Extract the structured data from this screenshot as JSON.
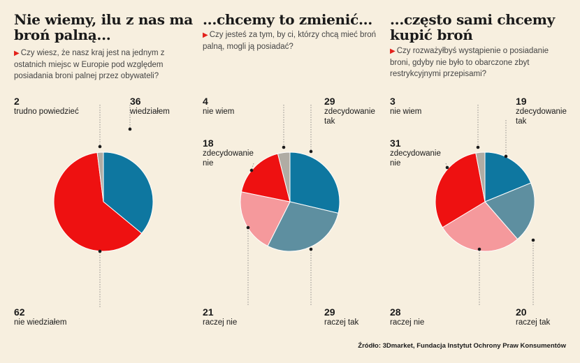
{
  "colors": {
    "red": "#ee1111",
    "blue": "#0e77a0",
    "grey": "#b0aca4",
    "steel": "#5e8fa0",
    "pink": "#f5999c"
  },
  "chart_data": [
    {
      "type": "pie",
      "title": "Nie wiemy, ilu z nas ma broń palną...",
      "question": "Czy wiesz, że nasz kraj jest na jednym z ostatnich miejsc w Europie pod względem posiadania broni palnej przez obywateli?",
      "slices": [
        {
          "label": "wiedziałem",
          "value": 36,
          "color": "blue"
        },
        {
          "label": "nie wiedziałem",
          "value": 62,
          "color": "red"
        },
        {
          "label": "trudno powiedzieć",
          "value": 2,
          "color": "grey"
        }
      ]
    },
    {
      "type": "pie",
      "title": "...chcemy to zmienić...",
      "question": "Czy jesteś za tym, by ci, którzy chcą mieć broń palną, mogli ją posiadać?",
      "slices": [
        {
          "label": "zdecydowanie tak",
          "value": 29,
          "color": "blue"
        },
        {
          "label": "raczej tak",
          "value": 29,
          "color": "steel"
        },
        {
          "label": "raczej nie",
          "value": 21,
          "color": "pink"
        },
        {
          "label": "zdecydowanie nie",
          "value": 18,
          "color": "red"
        },
        {
          "label": "nie wiem",
          "value": 4,
          "color": "grey"
        }
      ]
    },
    {
      "type": "pie",
      "title": "...często sami chcemy kupić broń",
      "question": "Czy rozważyłbyś wystąpienie o posiadanie broni, gdyby nie było to obarczone zbyt restrykcyjnymi przepisami?",
      "slices": [
        {
          "label": "zdecydowanie tak",
          "value": 19,
          "color": "blue"
        },
        {
          "label": "raczej tak",
          "value": 20,
          "color": "steel"
        },
        {
          "label": "raczej nie",
          "value": 28,
          "color": "pink"
        },
        {
          "label": "zdecydowanie nie",
          "value": 31,
          "color": "red"
        },
        {
          "label": "nie wiem",
          "value": 3,
          "color": "grey"
        }
      ]
    }
  ],
  "source": "Źródło: 3Dmarket, Fundacja Instytut Ochrony Praw Konsumentów"
}
